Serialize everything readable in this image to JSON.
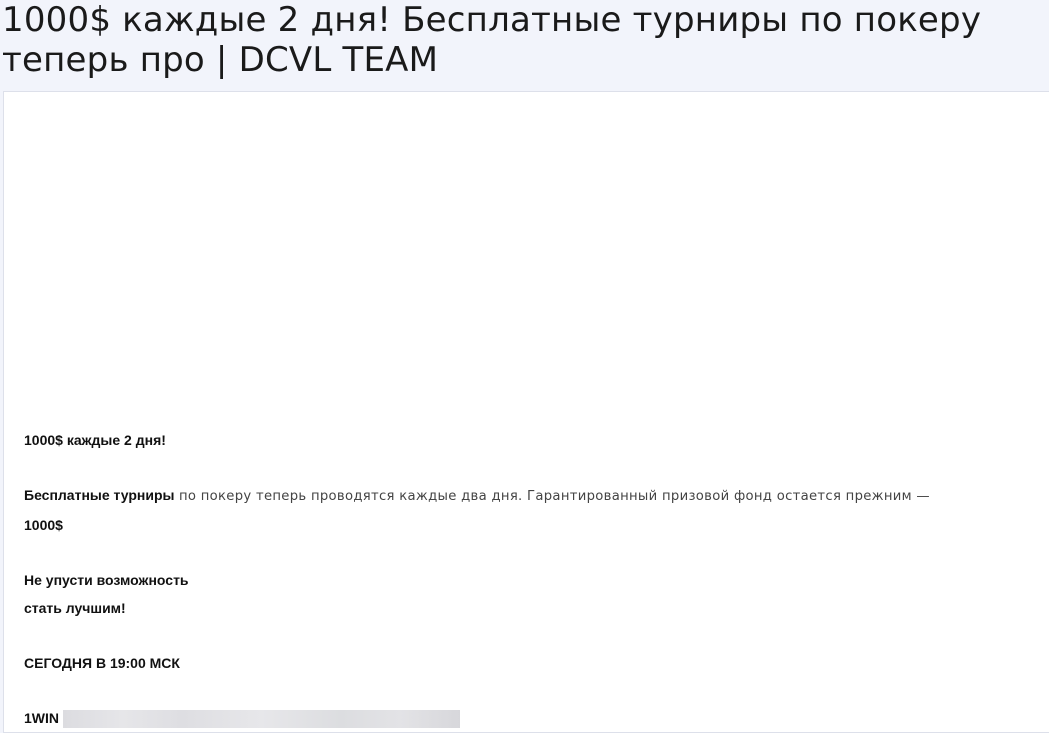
{
  "page": {
    "title": "1000$ каждые 2 дня! Бесплатные турниры по покеру теперь про | DCVL TEAM"
  },
  "post": {
    "headline": "1000$ каждые 2 дня!",
    "para_bold": "Бесплатные турниры",
    "para_rest": " по покеру теперь проводятся каждые два дня. Гарантированный призовой фонд остается прежним —",
    "para_amount": "1000$",
    "cta_line1": "Не упусти возможность",
    "cta_line2": "стать лучшим!",
    "time": "СЕГОДНЯ В 19:00 МСК",
    "brand": "1WIN"
  },
  "colors": {
    "header_bg": "#f2f4fb",
    "card_bg": "#ffffff"
  }
}
